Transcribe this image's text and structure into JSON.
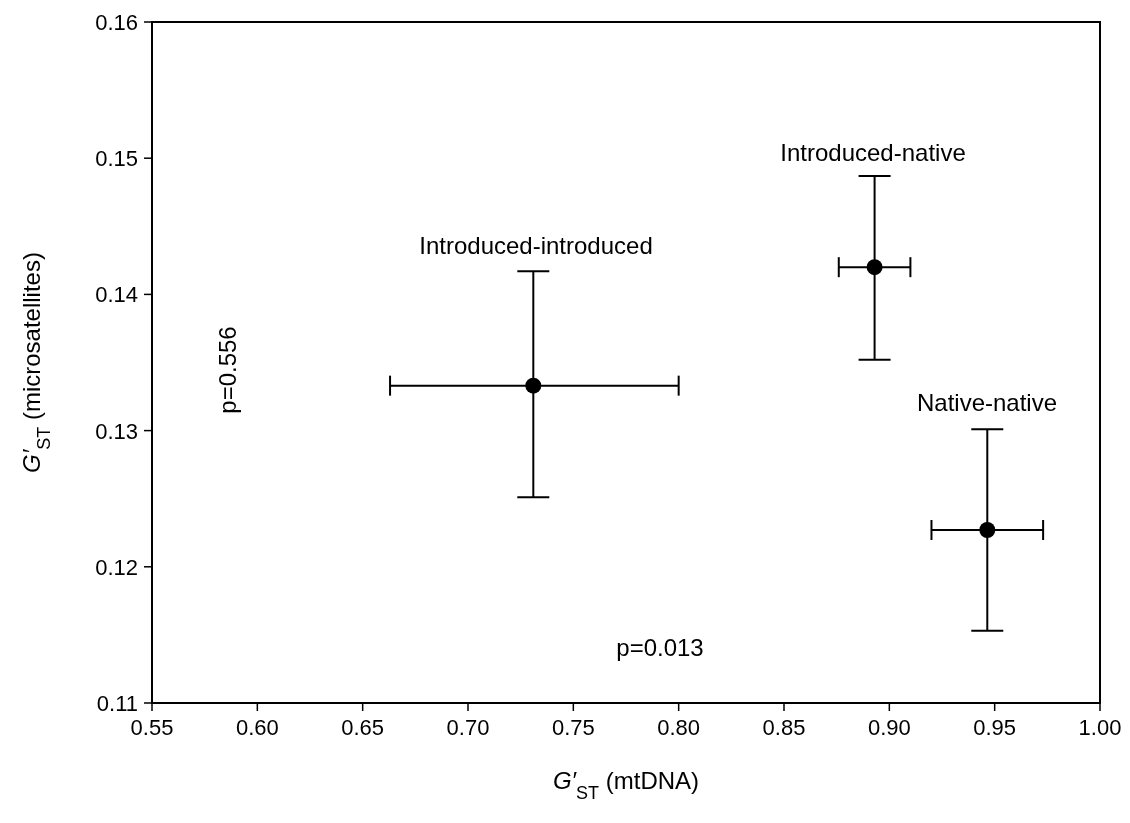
{
  "chart_data": {
    "type": "scatter",
    "xlabel": "G′$_{ST}$ (mtDNA)",
    "ylabel": "G′$_{ST}$ (microsatellites)",
    "x": [
      0.731,
      0.893,
      0.9465
    ],
    "values": [
      0.1333,
      0.142,
      0.1227
    ],
    "errors": [
      [
        0.1251,
        0.1417
      ],
      [
        0.1352,
        0.1487
      ],
      [
        0.1153,
        0.1301
      ]
    ],
    "xerrors": [
      [
        0.663,
        0.8
      ],
      [
        0.876,
        0.91
      ],
      [
        0.92,
        0.973
      ]
    ],
    "color": "#000000",
    "marker": "circle",
    "xlim": [
      0.55,
      1.0
    ],
    "xticks": [
      {
        "value": 0.55,
        "label": "0.55"
      },
      {
        "value": 0.6,
        "label": "0.60"
      },
      {
        "value": 0.65,
        "label": "0.65"
      },
      {
        "value": 0.7,
        "label": "0.70"
      },
      {
        "value": 0.75,
        "label": "0.75"
      },
      {
        "value": 0.8,
        "label": "0.80"
      },
      {
        "value": 0.85,
        "label": "0.85"
      },
      {
        "value": 0.9,
        "label": "0.90"
      },
      {
        "value": 0.95,
        "label": "0.95"
      },
      {
        "value": 1.0,
        "label": "1.00"
      }
    ],
    "ylim": [
      0.11,
      0.16
    ],
    "yticks": [
      0.11,
      0.12,
      0.13,
      0.14,
      0.15,
      0.16
    ],
    "annotations": [
      "Introduced-introduced",
      "Introduced-native",
      "Native-native",
      "p=0.556",
      "p=0.013"
    ]
  }
}
